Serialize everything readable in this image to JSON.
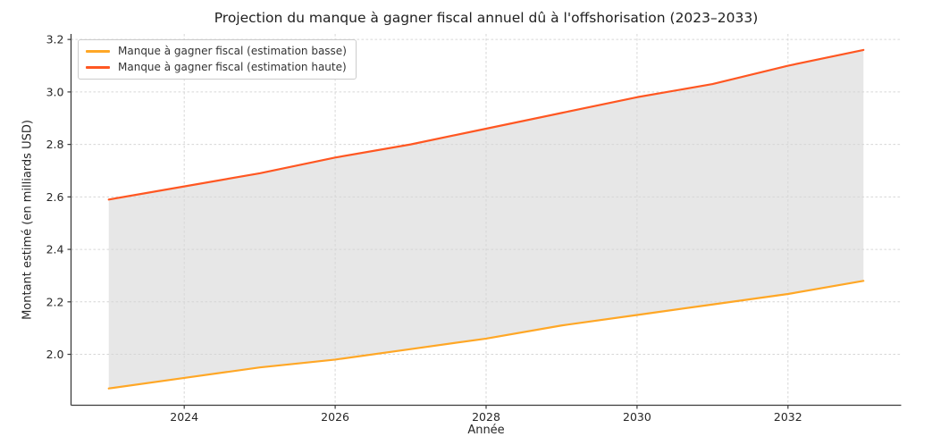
{
  "chart_data": {
    "type": "area",
    "title": "Projection du manque à gagner fiscal annuel dû à l'offshorisation (2023–2033)",
    "xlabel": "Année",
    "ylabel": "Montant estimé (en milliards USD)",
    "x": [
      2023,
      2024,
      2025,
      2026,
      2027,
      2028,
      2029,
      2030,
      2031,
      2032,
      2033
    ],
    "series": [
      {
        "name": "Manque à gagner fiscal (estimation basse)",
        "color": "#ffa726",
        "values": [
          1.87,
          1.91,
          1.95,
          1.98,
          2.02,
          2.06,
          2.11,
          2.15,
          2.19,
          2.23,
          2.28
        ]
      },
      {
        "name": "Manque à gagner fiscal (estimation haute)",
        "color": "#ff5722",
        "values": [
          2.59,
          2.64,
          2.69,
          2.75,
          2.8,
          2.86,
          2.92,
          2.98,
          3.03,
          3.1,
          3.16
        ]
      }
    ],
    "fill_between": {
      "between": [
        "estimation basse",
        "estimation haute"
      ],
      "color": "#e7e7e7"
    },
    "xlim": [
      2022.5,
      2033.5
    ],
    "ylim": [
      1.806,
      3.221
    ],
    "xticks": {
      "values": [
        2024,
        2026,
        2028,
        2030,
        2032
      ],
      "labels": [
        "2024",
        "2026",
        "2028",
        "2030",
        "2032"
      ]
    },
    "yticks": {
      "values": [
        2.0,
        2.2,
        2.4,
        2.6,
        2.8,
        3.0,
        3.2
      ],
      "labels": [
        "2.0",
        "2.2",
        "2.4",
        "2.6",
        "2.8",
        "3.0",
        "3.2"
      ]
    },
    "grid": {
      "on": true,
      "style": "dashed",
      "color": "#d6d6d6"
    },
    "legend_position": "upper left",
    "background": "#ffffff"
  }
}
